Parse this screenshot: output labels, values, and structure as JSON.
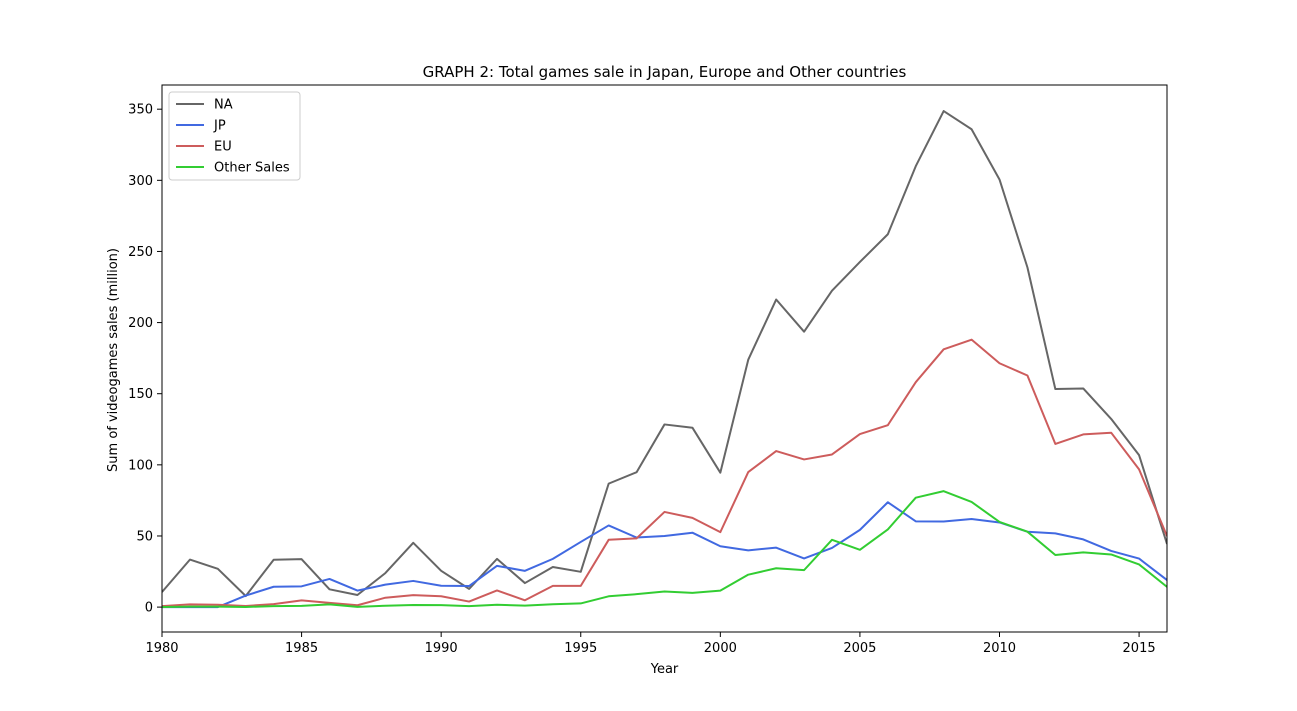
{
  "chart_data": {
    "type": "line",
    "title": "GRAPH 2: Total games sale in Japan, Europe and Other countries",
    "xlabel": "Year",
    "ylabel": "Sum of videogames sales (million)",
    "xlim": [
      1980,
      2016
    ],
    "ylim": [
      -17.5,
      367
    ],
    "xticks": [
      1980,
      1985,
      1990,
      1995,
      2000,
      2005,
      2010,
      2015
    ],
    "yticks": [
      0,
      50,
      100,
      150,
      200,
      250,
      300,
      350
    ],
    "grid": false,
    "legend_position": "upper-left",
    "x": [
      1980,
      1981,
      1982,
      1983,
      1984,
      1985,
      1986,
      1987,
      1988,
      1989,
      1990,
      1991,
      1992,
      1993,
      1994,
      1995,
      1996,
      1997,
      1998,
      1999,
      2000,
      2001,
      2002,
      2003,
      2004,
      2005,
      2006,
      2007,
      2008,
      2009,
      2010,
      2011,
      2012,
      2013,
      2014,
      2015,
      2016
    ],
    "series": [
      {
        "name": "NA",
        "color": "#666666",
        "values": [
          10.6,
          33.4,
          26.9,
          7.8,
          33.3,
          33.7,
          12.5,
          8.5,
          23.9,
          45.2,
          25.5,
          12.8,
          33.9,
          16.9,
          28.2,
          24.8,
          86.8,
          94.8,
          128.4,
          126.1,
          94.5,
          173.9,
          216.2,
          193.6,
          222.4,
          242.6,
          262.1,
          309.9,
          348.7,
          335.9,
          300.6,
          238.8,
          153.3,
          153.7,
          132.3,
          106.8,
          44.4
        ]
      },
      {
        "name": "JP",
        "color": "#4169e1",
        "values": [
          0,
          0,
          0,
          8.1,
          14.3,
          14.6,
          19.8,
          11.6,
          15.8,
          18.4,
          15.0,
          14.8,
          29.0,
          25.5,
          33.9,
          45.8,
          57.4,
          48.9,
          50.0,
          52.3,
          42.8,
          39.9,
          41.8,
          34.2,
          41.6,
          54.3,
          73.7,
          60.3,
          60.2,
          61.9,
          59.5,
          53.0,
          51.8,
          47.6,
          39.5,
          34.1,
          19.0
        ]
      },
      {
        "name": "EU",
        "color": "#cd5c5c",
        "values": [
          0.7,
          1.9,
          1.7,
          0.8,
          2.1,
          4.7,
          3.0,
          1.3,
          6.6,
          8.4,
          7.6,
          3.9,
          11.7,
          4.8,
          14.9,
          14.9,
          47.3,
          48.3,
          66.9,
          62.7,
          52.7,
          94.9,
          109.7,
          103.8,
          107.3,
          121.6,
          127.9,
          158.1,
          181.2,
          188.0,
          171.4,
          162.8,
          114.7,
          121.4,
          122.6,
          96.8,
          49.9
        ]
      },
      {
        "name": "Other Sales",
        "color": "#32cd32",
        "values": [
          0.1,
          0.3,
          0.3,
          0.1,
          0.7,
          0.9,
          1.9,
          0.2,
          0.99,
          1.5,
          1.4,
          0.7,
          1.7,
          1.0,
          2.0,
          2.6,
          7.6,
          9.1,
          11.0,
          10.0,
          11.6,
          22.8,
          27.3,
          26.0,
          47.3,
          40.3,
          54.6,
          76.9,
          81.5,
          73.9,
          59.9,
          53.0,
          36.6,
          38.5,
          37.0,
          30.0,
          14.2
        ]
      }
    ]
  }
}
